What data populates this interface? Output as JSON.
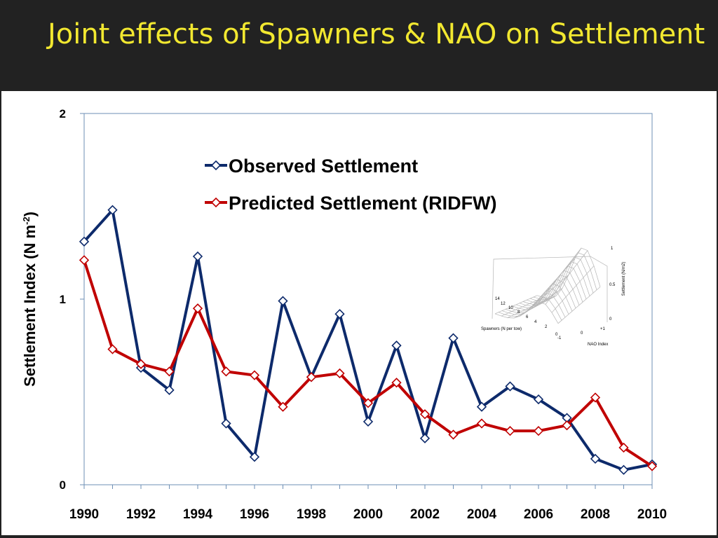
{
  "slide": {
    "title": "Joint effects of Spawners & NAO on Settlement",
    "title_color": "#f2e830",
    "background": "#222222"
  },
  "chart_data": {
    "type": "line",
    "title": "",
    "xlabel": "",
    "ylabel_main": "Settlement Index (N m",
    "ylabel_sup": "-2",
    "ylabel_close": ")",
    "x": [
      1990,
      1991,
      1992,
      1993,
      1994,
      1995,
      1996,
      1997,
      1998,
      1999,
      2000,
      2001,
      2002,
      2003,
      2004,
      2005,
      2006,
      2007,
      2008,
      2009,
      2010
    ],
    "x_ticks": [
      "1990",
      "1992",
      "1994",
      "1996",
      "1998",
      "2000",
      "2002",
      "2004",
      "2006",
      "2008",
      "2010"
    ],
    "y_ticks": [
      "0",
      "1",
      "2"
    ],
    "xlim": [
      1990,
      2010
    ],
    "ylim": [
      0,
      2
    ],
    "grid": false,
    "legend_position": "top-center",
    "series": [
      {
        "name": "Observed Settlement",
        "color": "#0d2a6b",
        "marker": "diamond",
        "values": [
          1.31,
          1.48,
          0.63,
          0.51,
          1.23,
          0.33,
          0.15,
          0.99,
          0.58,
          0.92,
          0.34,
          0.75,
          0.25,
          0.79,
          0.42,
          0.53,
          0.46,
          0.36,
          0.14,
          0.08,
          0.11
        ]
      },
      {
        "name": "Predicted Settlement (RIDFW)",
        "color": "#c00000",
        "marker": "diamond",
        "values": [
          1.21,
          0.73,
          0.65,
          0.61,
          0.95,
          0.61,
          0.59,
          0.42,
          0.58,
          0.6,
          0.44,
          0.55,
          0.38,
          0.27,
          0.33,
          0.29,
          0.29,
          0.32,
          0.47,
          0.2,
          0.1
        ]
      }
    ]
  },
  "inset": {
    "z_label": "Settlement (N/m2)",
    "x_label": "Spawners (N  per tow)",
    "y_label": "NAO Index",
    "z_ticks": [
      "1",
      "0.5",
      "0"
    ],
    "spawner_ticks": [
      "14",
      "12",
      "10",
      "8",
      "6",
      "4",
      "2",
      "0"
    ],
    "nao_ticks": [
      "+1",
      "0",
      "-1"
    ]
  }
}
